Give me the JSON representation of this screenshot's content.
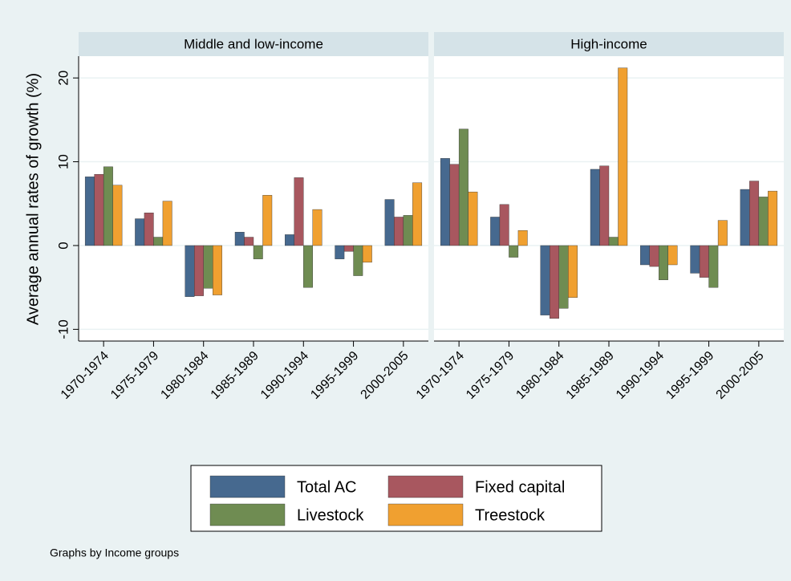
{
  "chart_data": {
    "type": "bar",
    "ylabel": "Average annual rates of growth (%)",
    "note": "Graphs by Income groups",
    "panels": [
      "Middle and low-income",
      "High-income"
    ],
    "categories": [
      "1970-1974",
      "1975-1979",
      "1980-1984",
      "1985-1989",
      "1990-1994",
      "1995-1999",
      "2000-2005"
    ],
    "series": [
      {
        "name": "Total AC",
        "color": "#46698f",
        "values": [
          [
            8.2,
            3.2,
            -6.1,
            1.6,
            1.3,
            -1.6,
            5.5
          ],
          [
            10.4,
            3.4,
            -8.3,
            9.1,
            -2.3,
            -3.3,
            6.7
          ]
        ]
      },
      {
        "name": "Fixed capital",
        "color": "#a8575f",
        "values": [
          [
            8.5,
            3.9,
            -6.0,
            1.0,
            8.1,
            -0.7,
            3.4
          ],
          [
            9.7,
            4.9,
            -8.7,
            9.5,
            -2.5,
            -3.8,
            7.7
          ]
        ]
      },
      {
        "name": "Livestock",
        "color": "#6f8c52",
        "values": [
          [
            9.4,
            1.0,
            -5.1,
            -1.6,
            -5.0,
            -3.6,
            3.6
          ],
          [
            13.9,
            -1.4,
            -7.5,
            1.0,
            -4.1,
            -5.0,
            5.8
          ]
        ]
      },
      {
        "name": "Treestock",
        "color": "#f0a030",
        "values": [
          [
            7.2,
            5.3,
            -5.9,
            6.0,
            4.3,
            -2.0,
            7.5
          ],
          [
            6.4,
            1.8,
            -6.2,
            21.2,
            -2.3,
            3.0,
            6.5
          ]
        ]
      }
    ],
    "ylim": [
      -11.4,
      22.6
    ],
    "yticks": [
      -10,
      0,
      10,
      20
    ],
    "grid": true,
    "legend": "bottom"
  }
}
